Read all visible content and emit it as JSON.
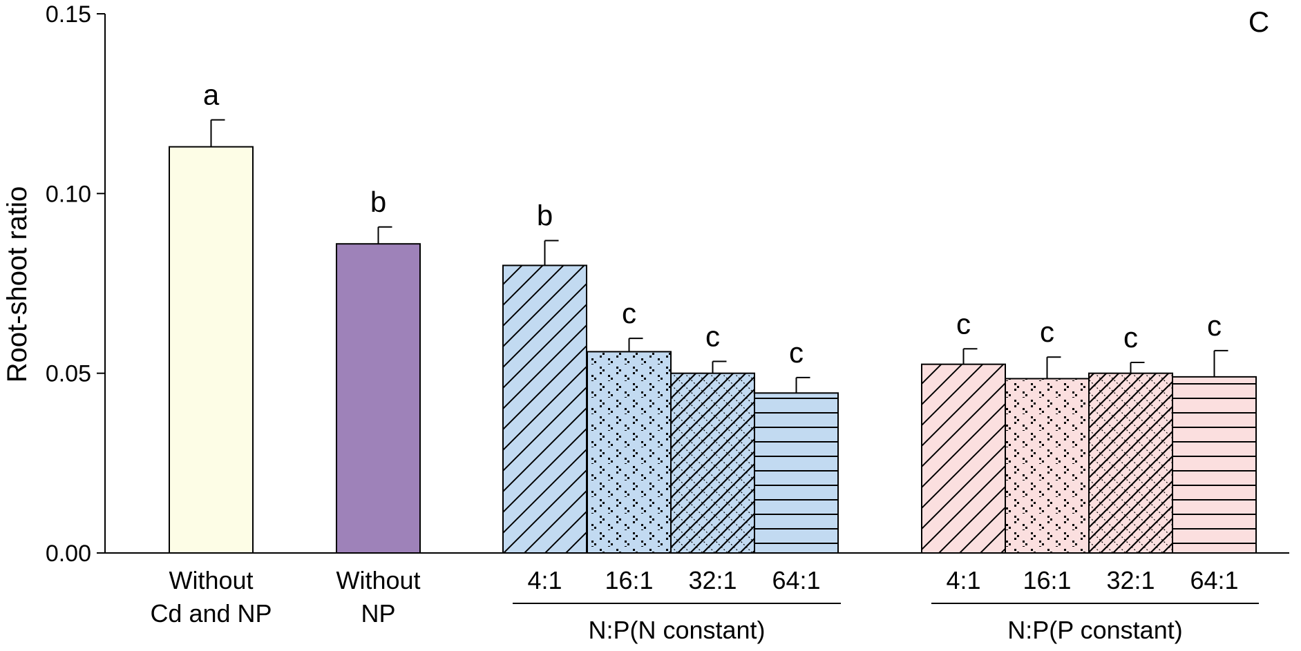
{
  "chart_data": {
    "type": "bar",
    "panel_label": "C",
    "ylabel": "Root-shoot ratio",
    "xlabel": "",
    "ylim": [
      0,
      0.15
    ],
    "yticks": [
      0.0,
      0.05,
      0.1,
      0.15
    ],
    "ytick_labels": [
      "0.00",
      "0.05",
      "0.10",
      "0.15"
    ],
    "grid": false,
    "bars": [
      {
        "label_lines": [
          "Without",
          "Cd and NP"
        ],
        "value": 0.113,
        "error": 0.0075,
        "sig": "a",
        "color": "#fdfde6",
        "pattern": "none"
      },
      {
        "label_lines": [
          "Without",
          "NP"
        ],
        "value": 0.086,
        "error": 0.0047,
        "sig": "b",
        "color": "#9e82b9",
        "pattern": "none"
      },
      {
        "label_lines": [
          "4:1"
        ],
        "value": 0.08,
        "error": 0.0069,
        "sig": "b",
        "color": "#c2daf1",
        "pattern": "diagonal"
      },
      {
        "label_lines": [
          "16:1"
        ],
        "value": 0.056,
        "error": 0.0037,
        "sig": "c",
        "color": "#c2daf1",
        "pattern": "dots"
      },
      {
        "label_lines": [
          "32:1"
        ],
        "value": 0.05,
        "error": 0.0033,
        "sig": "c",
        "color": "#c2daf1",
        "pattern": "crosshatch"
      },
      {
        "label_lines": [
          "64:1"
        ],
        "value": 0.0445,
        "error": 0.0043,
        "sig": "c",
        "color": "#c2daf1",
        "pattern": "horizontal"
      },
      {
        "label_lines": [
          "4:1"
        ],
        "value": 0.0525,
        "error": 0.0043,
        "sig": "c",
        "color": "#fbdfdf",
        "pattern": "diagonal"
      },
      {
        "label_lines": [
          "16:1"
        ],
        "value": 0.0485,
        "error": 0.006,
        "sig": "c",
        "color": "#fbdfdf",
        "pattern": "dots"
      },
      {
        "label_lines": [
          "32:1"
        ],
        "value": 0.05,
        "error": 0.003,
        "sig": "c",
        "color": "#fbdfdf",
        "pattern": "crosshatch"
      },
      {
        "label_lines": [
          "64:1"
        ],
        "value": 0.049,
        "error": 0.0073,
        "sig": "c",
        "color": "#fbdfdf",
        "pattern": "horizontal"
      }
    ],
    "groups": [
      {
        "label": "N:P(N constant)",
        "first_bar": 2,
        "last_bar": 5
      },
      {
        "label": "N:P(P constant)",
        "first_bar": 6,
        "last_bar": 9
      }
    ]
  }
}
